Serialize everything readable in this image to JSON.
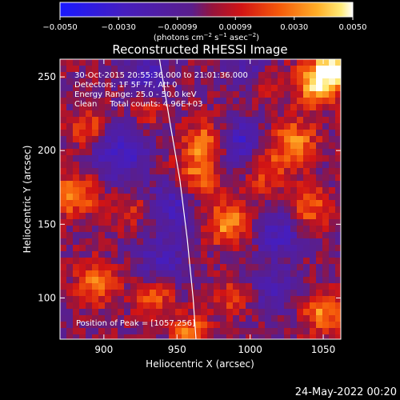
{
  "chart_data": {
    "type": "heatmap",
    "title": "Reconstructed RHESSI Image",
    "xlabel": "Heliocentric X (arcsec)",
    "ylabel": "Heliocentric Y (arcsec)",
    "xlim": [
      870,
      1062
    ],
    "ylim": [
      72,
      262
    ],
    "xticks": [
      900,
      950,
      1000,
      1050
    ],
    "yticks": [
      100,
      150,
      200,
      250
    ],
    "grid": false,
    "colorbar": {
      "position": "top",
      "range": [
        -0.005,
        0.005
      ],
      "tick_values": [
        -0.005,
        -0.003,
        -0.00099,
        0.00099,
        0.003,
        0.005
      ],
      "tick_labels": [
        "−0.0050",
        "−0.0030",
        "−0.00099",
        "0.00099",
        "0.0030",
        "0.0050"
      ],
      "unit_prefix": "(photons cm",
      "unit_exp1": "−2",
      "unit_mid1": " s",
      "unit_exp2": "−1",
      "unit_mid2": " asec",
      "unit_exp3": "−2",
      "unit_suffix": ")"
    },
    "annotations": {
      "time_range": "30-Oct-2015 20:55:36.000 to 21:01:36.000",
      "detectors": "Detectors: 1F 5F 7F, Att 0",
      "energy": "Energy Range: 25.0 - 50.0 keV",
      "clean": "Clean     Total counts: 4.96E+03",
      "peak": "Position of Peak = [1057,256]"
    },
    "limb_curve": {
      "x": [
        938,
        945,
        952,
        957,
        961,
        963
      ],
      "y": [
        262,
        220,
        180,
        140,
        100,
        72
      ]
    },
    "peak_position": [
      1057,
      256
    ],
    "components": [
      {
        "x": 1058,
        "y": 256,
        "amp": 0.005,
        "sigma": 9
      },
      {
        "x": 1045,
        "y": 245,
        "amp": 0.004,
        "sigma": 10
      },
      {
        "x": 962,
        "y": 180,
        "amp": 0.003,
        "sigma": 12
      },
      {
        "x": 972,
        "y": 205,
        "amp": 0.0034,
        "sigma": 11
      },
      {
        "x": 1030,
        "y": 205,
        "amp": 0.003,
        "sigma": 11
      },
      {
        "x": 1010,
        "y": 185,
        "amp": 0.0022,
        "sigma": 10
      },
      {
        "x": 985,
        "y": 150,
        "amp": 0.0034,
        "sigma": 10
      },
      {
        "x": 1040,
        "y": 160,
        "amp": 0.0026,
        "sigma": 10
      },
      {
        "x": 880,
        "y": 170,
        "amp": 0.0032,
        "sigma": 10
      },
      {
        "x": 890,
        "y": 215,
        "amp": 0.0025,
        "sigma": 9
      },
      {
        "x": 895,
        "y": 110,
        "amp": 0.003,
        "sigma": 10
      },
      {
        "x": 935,
        "y": 100,
        "amp": 0.0024,
        "sigma": 9
      },
      {
        "x": 960,
        "y": 75,
        "amp": 0.0032,
        "sigma": 9
      },
      {
        "x": 1050,
        "y": 90,
        "amp": 0.003,
        "sigma": 10
      },
      {
        "x": 990,
        "y": 100,
        "amp": 0.002,
        "sigma": 9
      },
      {
        "x": 930,
        "y": 230,
        "amp": 0.002,
        "sigma": 9
      },
      {
        "x": 920,
        "y": 160,
        "amp": 0.0016,
        "sigma": 8
      },
      {
        "x": 1010,
        "y": 245,
        "amp": 0.0018,
        "sigma": 9
      },
      {
        "x": 910,
        "y": 200,
        "amp": -0.003,
        "sigma": 14
      },
      {
        "x": 990,
        "y": 205,
        "amp": -0.0034,
        "sigma": 12
      },
      {
        "x": 950,
        "y": 165,
        "amp": -0.003,
        "sigma": 13
      },
      {
        "x": 1020,
        "y": 145,
        "amp": -0.0026,
        "sigma": 12
      },
      {
        "x": 940,
        "y": 125,
        "amp": -0.0022,
        "sigma": 12
      },
      {
        "x": 1015,
        "y": 105,
        "amp": -0.002,
        "sigma": 12
      },
      {
        "x": 930,
        "y": 250,
        "amp": -0.0024,
        "sigma": 12
      },
      {
        "x": 1000,
        "y": 255,
        "amp": -0.002,
        "sigma": 11
      }
    ]
  },
  "footer": {
    "timestamp": "24-May-2022 00:20"
  }
}
